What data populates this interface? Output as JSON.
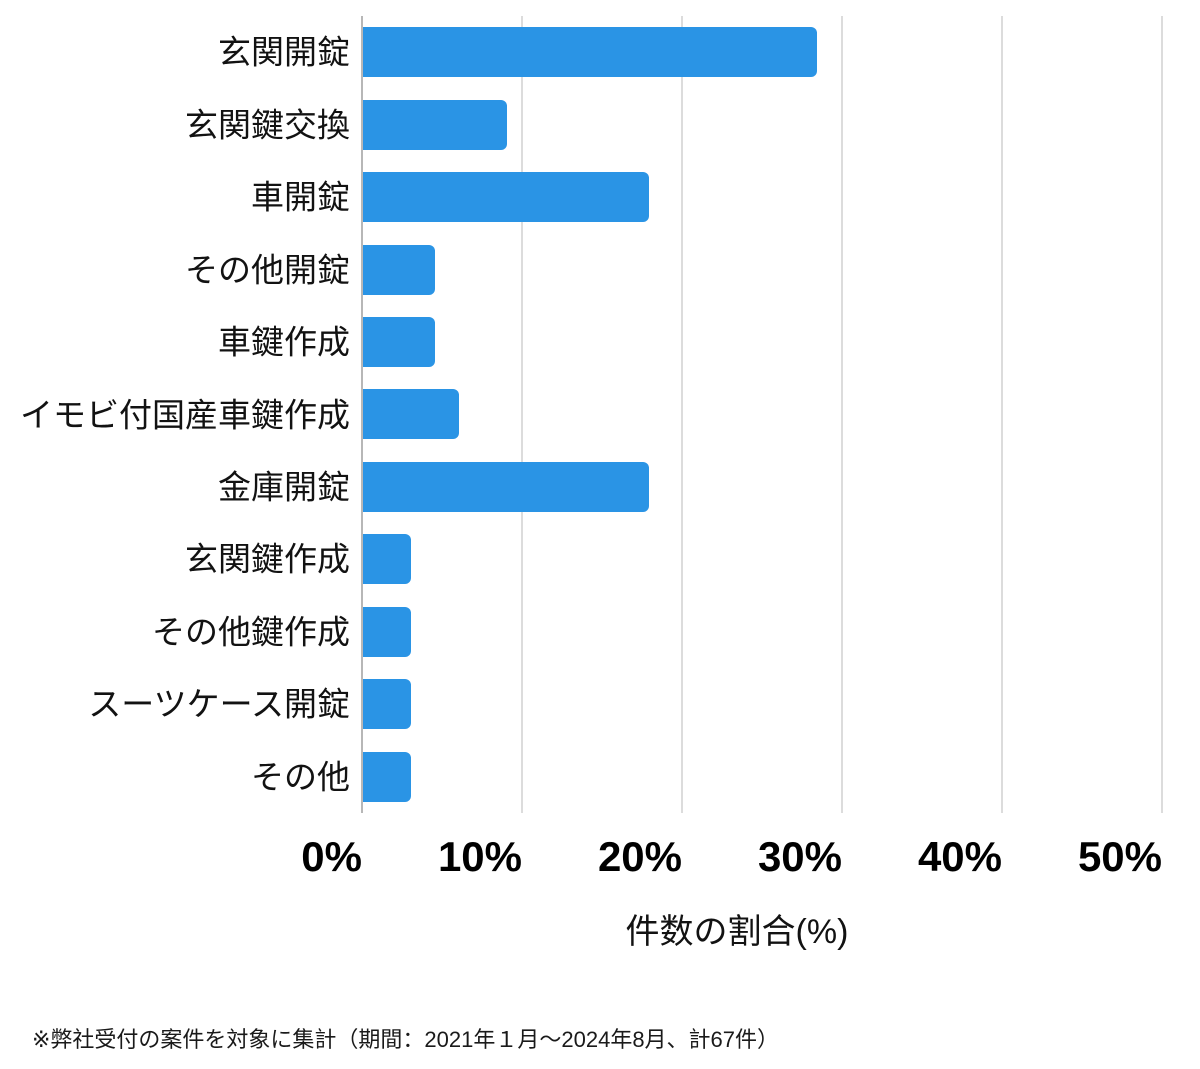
{
  "chart_data": {
    "type": "bar",
    "orientation": "horizontal",
    "title": "",
    "categories": [
      "玄関開錠",
      "玄関鍵交換",
      "車開錠",
      "その他開錠",
      "車鍵作成",
      "イモビ付国産車鍵作成",
      "金庫開錠",
      "玄関鍵作成",
      "その他鍵作成",
      "スーツケース開錠",
      "その他"
    ],
    "values": [
      28.4,
      9.0,
      17.9,
      4.5,
      4.5,
      6.0,
      17.9,
      3.0,
      3.0,
      3.0,
      3.0
    ],
    "xlabel": "件数の割合(%)",
    "ylabel": "",
    "xlim": [
      0,
      50
    ],
    "x_tick_labels": [
      "0%",
      "10%",
      "20%",
      "30%",
      "40%",
      "50%"
    ],
    "x_tick_values": [
      0,
      10,
      20,
      30,
      40,
      50
    ],
    "grid": "vertical-on",
    "legend_position": "none",
    "bar_color": "#2a94e5",
    "gridline_color": "#dcdcdc",
    "axis_line_color": "#b7b7b7"
  },
  "footnote": "※弊社受付の案件を対象に集計（期間：2021年１月～2024年8月、計67件）"
}
